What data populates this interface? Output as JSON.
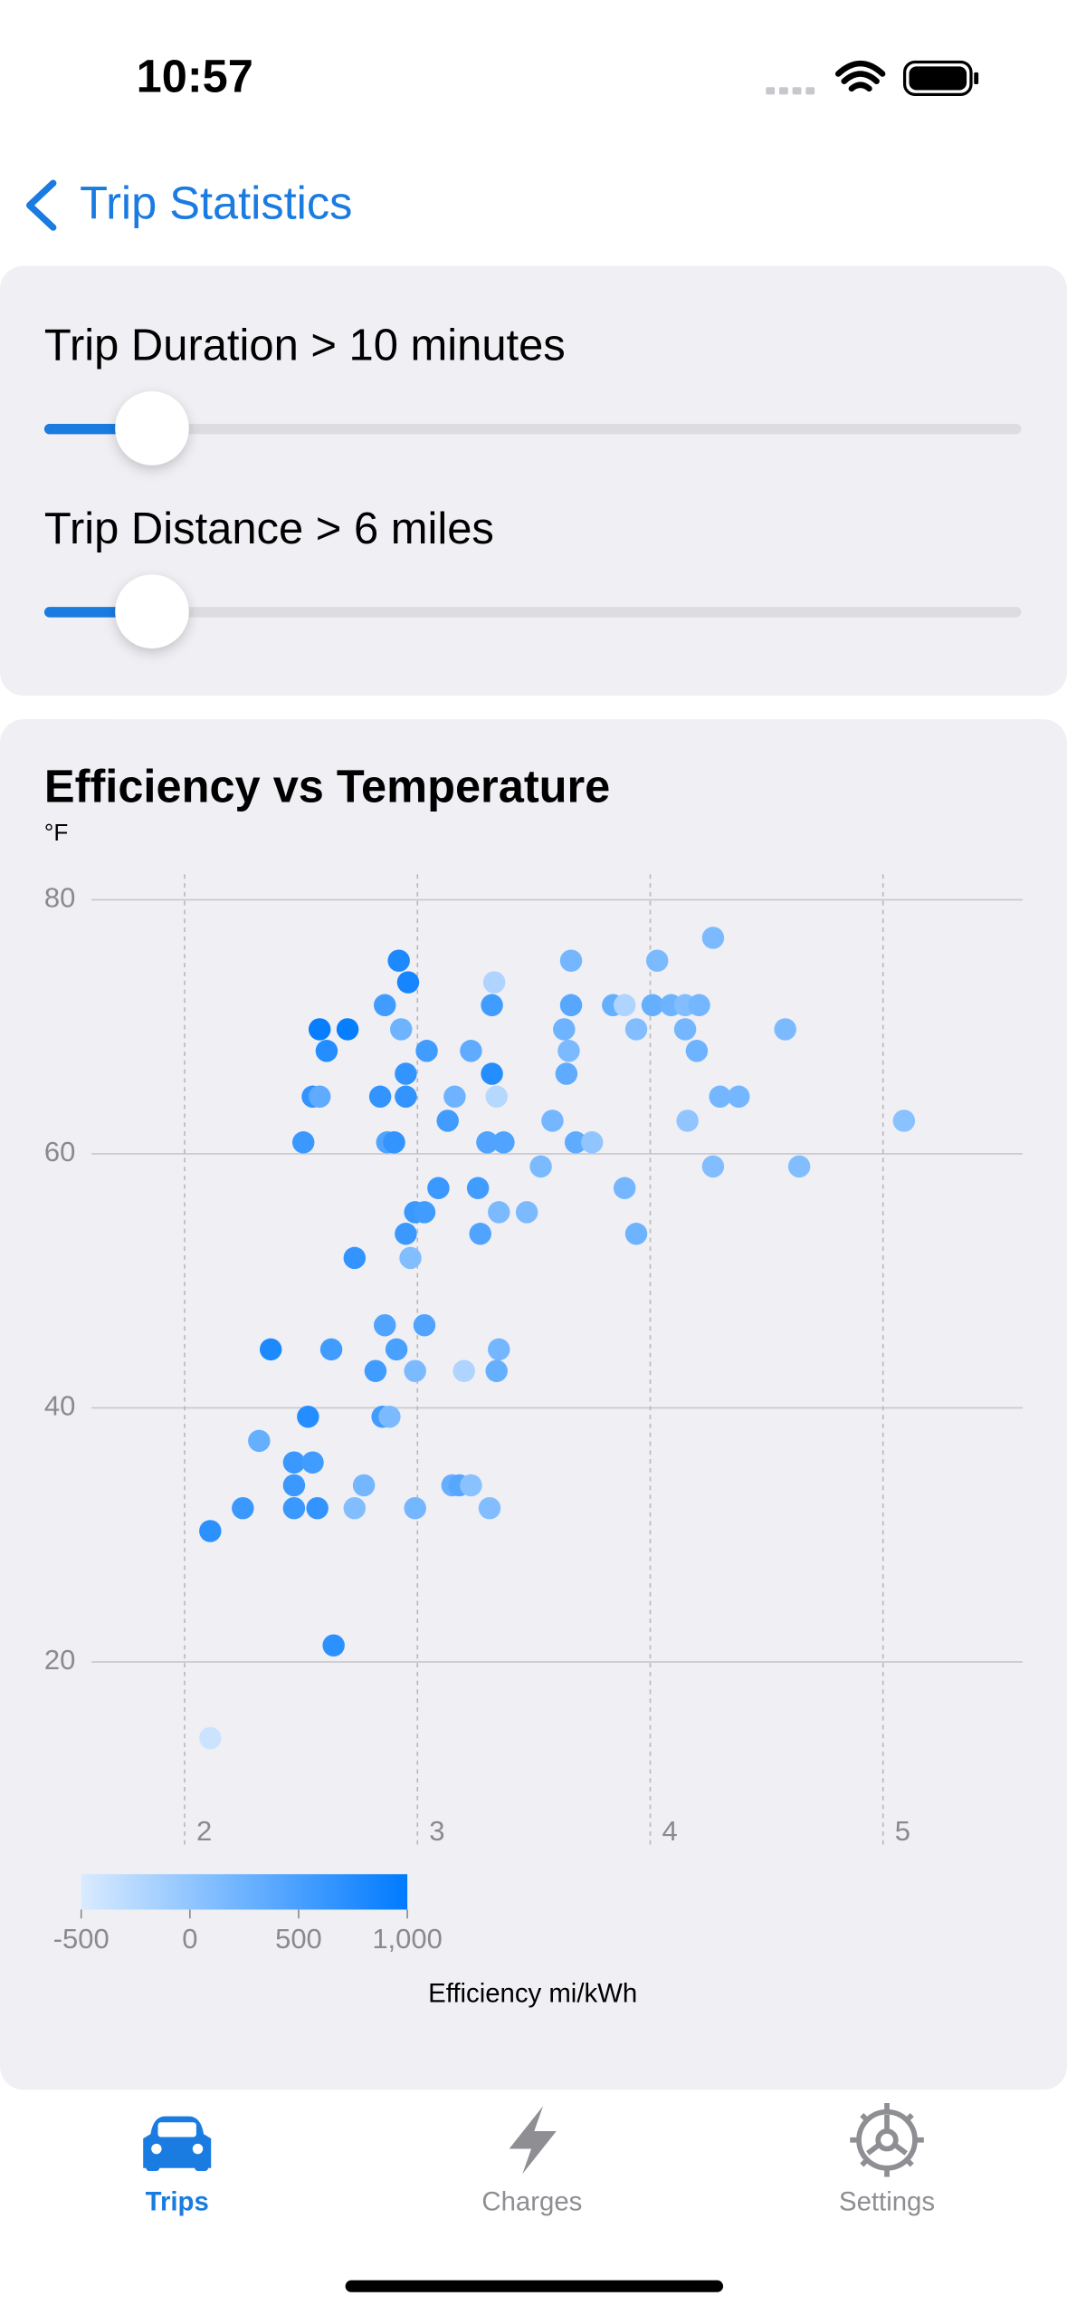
{
  "status_bar": {
    "time": "10:57"
  },
  "nav": {
    "back": "Trip Statistics"
  },
  "filters": [
    {
      "label": "Trip Duration > 10 minutes"
    },
    {
      "label": "Trip Distance > 6 miles"
    }
  ],
  "chart_data": {
    "type": "scatter",
    "title": "Efficiency vs Temperature",
    "y_label": "°F",
    "x_label": "Efficiency mi/kWh",
    "xlim": [
      1.6,
      5.6
    ],
    "xticks": [
      2,
      3,
      4,
      5
    ],
    "ylim": [
      5.5,
      82
    ],
    "yticks": [
      20,
      40,
      60,
      80
    ],
    "grid": true,
    "x": [
      2.11,
      2.11,
      2.25,
      2.32,
      2.37,
      2.51,
      2.47,
      2.47,
      2.47,
      2.53,
      2.55,
      2.57,
      2.55,
      2.58,
      2.58,
      2.61,
      2.7,
      2.63,
      2.64,
      2.73,
      2.73,
      2.77,
      2.82,
      2.84,
      2.86,
      2.86,
      2.85,
      2.88,
      2.87,
      2.9,
      2.92,
      2.96,
      2.93,
      2.91,
      2.95,
      2.95,
      2.95,
      2.97,
      2.99,
      3.03,
      3.04,
      3.03,
      2.99,
      2.99,
      3.09,
      3.13,
      3.16,
      3.15,
      3.18,
      3.2,
      3.23,
      3.23,
      3.26,
      3.27,
      3.3,
      3.32,
      3.32,
      3.33,
      3.34,
      3.35,
      3.35,
      3.34,
      3.31,
      3.37,
      3.47,
      3.53,
      3.58,
      3.63,
      3.64,
      3.65,
      3.66,
      3.66,
      3.68,
      3.75,
      3.84,
      3.89,
      3.94,
      3.89,
      3.94,
      4.01,
      4.03,
      4.09,
      4.15,
      4.21,
      4.15,
      4.2,
      4.16,
      4.27,
      4.3,
      4.38,
      4.27,
      4.58,
      4.64,
      5.09
    ],
    "values": [
      30.3,
      14.0,
      32.1,
      37.4,
      44.6,
      60.9,
      35.7,
      33.9,
      32.1,
      39.3,
      35.7,
      32.1,
      64.5,
      64.5,
      69.8,
      68.1,
      69.8,
      44.6,
      21.3,
      51.8,
      32.1,
      33.9,
      42.9,
      64.5,
      71.7,
      46.5,
      39.3,
      39.3,
      60.9,
      60.9,
      75.2,
      73.5,
      69.8,
      44.6,
      66.3,
      64.5,
      53.7,
      51.8,
      55.4,
      55.4,
      68.1,
      46.5,
      42.9,
      32.1,
      57.3,
      62.6,
      64.5,
      33.9,
      33.9,
      42.9,
      68.1,
      33.9,
      57.3,
      53.7,
      60.9,
      71.7,
      66.3,
      73.5,
      64.5,
      55.4,
      44.6,
      42.9,
      32.1,
      60.9,
      55.4,
      59.0,
      62.6,
      69.8,
      66.3,
      68.1,
      75.2,
      71.7,
      60.9,
      60.9,
      71.7,
      71.7,
      69.8,
      57.3,
      53.7,
      71.7,
      75.2,
      71.7,
      71.7,
      71.7,
      69.8,
      68.1,
      62.6,
      77.0,
      64.5,
      64.5,
      59.0,
      69.8,
      59.0,
      62.6
    ],
    "color_values": [
      700,
      -400,
      600,
      300,
      800,
      600,
      600,
      600,
      600,
      750,
      550,
      650,
      650,
      350,
      950,
      750,
      950,
      550,
      700,
      650,
      100,
      200,
      550,
      650,
      550,
      450,
      550,
      150,
      450,
      650,
      800,
      850,
      250,
      500,
      650,
      650,
      600,
      100,
      600,
      550,
      550,
      450,
      150,
      200,
      600,
      550,
      250,
      300,
      400,
      -200,
      350,
      50,
      550,
      450,
      450,
      550,
      750,
      -200,
      -250,
      150,
      200,
      300,
      100,
      450,
      150,
      150,
      200,
      250,
      350,
      150,
      200,
      400,
      350,
      0,
      300,
      -200,
      100,
      200,
      250,
      300,
      150,
      250,
      100,
      200,
      200,
      250,
      0,
      150,
      200,
      200,
      100,
      150,
      100,
      50
    ],
    "color_scale": {
      "lim": [
        -500,
        1000
      ],
      "ticks": [
        -500,
        0,
        500,
        {
          "value": 1000,
          "label": "1,000"
        }
      ],
      "colors": [
        "#d9ebff",
        "#007aff"
      ]
    }
  },
  "tab_bar": {
    "items": [
      {
        "label": "Trips"
      },
      {
        "label": "Charges"
      },
      {
        "label": "Settings"
      }
    ],
    "selected": 0
  }
}
